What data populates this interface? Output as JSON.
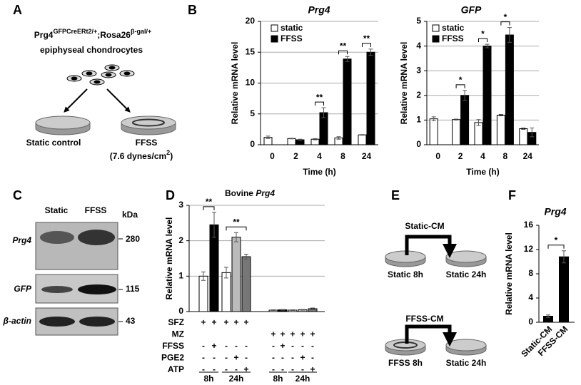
{
  "panel_labels": [
    "A",
    "B",
    "C",
    "D",
    "E",
    "F"
  ],
  "panel_a": {
    "title_parts": [
      "Prg4",
      "GFPCreERt2/+",
      ";Rosa26",
      "β-gal/+"
    ],
    "subtitle": "epiphyseal chondrocytes",
    "left_label": "Static control",
    "right_label": "FFSS",
    "right_sublabel_parts": [
      "(7.6 dynes/cm",
      "2",
      ")"
    ]
  },
  "chart_data": [
    {
      "type": "bar",
      "title": "Prg4",
      "categories": [
        "0",
        "2",
        "4",
        "8",
        "24"
      ],
      "series": [
        {
          "name": "static",
          "color": "#ffffff",
          "values": [
            1.2,
            1.0,
            0.9,
            1.1,
            1.6
          ],
          "errors": [
            0.2,
            0.05,
            0.1,
            0.2,
            0.05
          ]
        },
        {
          "name": "FFSS",
          "color": "#000000",
          "values": [
            null,
            0.8,
            5.2,
            13.9,
            15.0
          ],
          "errors": [
            null,
            0.1,
            0.8,
            0.4,
            0.5
          ]
        }
      ],
      "significance": [
        null,
        null,
        "**",
        "**",
        "**"
      ],
      "xlabel": "Time (h)",
      "ylabel": "Relative mRNA level",
      "ylim": [
        0,
        20
      ],
      "yticks": [
        0,
        5,
        10,
        15,
        20
      ],
      "grid": true,
      "legend": "top-left"
    },
    {
      "type": "bar",
      "title": "GFP",
      "categories": [
        "0",
        "2",
        "4",
        "8",
        "24"
      ],
      "series": [
        {
          "name": "static",
          "color": "#ffffff",
          "values": [
            1.05,
            1.02,
            0.9,
            1.2,
            0.65
          ],
          "errors": [
            0.08,
            0.02,
            0.12,
            0.03,
            0.03
          ]
        },
        {
          "name": "FFSS",
          "color": "#000000",
          "values": [
            null,
            2.0,
            4.0,
            4.45,
            0.5
          ],
          "errors": [
            null,
            0.2,
            0.07,
            0.3,
            0.18
          ]
        }
      ],
      "significance": [
        null,
        "*",
        "*",
        "*",
        null
      ],
      "xlabel": "Time (h)",
      "ylabel": "Relative mRNA level",
      "ylim": [
        0,
        5
      ],
      "yticks": [
        0,
        1,
        2,
        3,
        4,
        5
      ],
      "grid": true,
      "legend": "top-left"
    },
    {
      "type": "bar",
      "title": [
        "Bovine",
        "Prg4"
      ],
      "categories": [
        null,
        null,
        null,
        null,
        null,
        null,
        null,
        null,
        null,
        null
      ],
      "series": [
        {
          "colors": [
            "#ffffff",
            "#000000",
            "#ffffff",
            "#bbbbbb",
            "#777777",
            "#ffffff",
            "#000000",
            "#ffffff",
            "#bbbbbb",
            "#777777"
          ],
          "values": [
            1.0,
            2.45,
            1.1,
            2.1,
            1.55,
            0.04,
            0.05,
            0.04,
            0.05,
            0.08
          ],
          "errors": [
            0.12,
            0.35,
            0.15,
            0.13,
            0.07,
            0.01,
            0.01,
            0.01,
            0.01,
            0.02
          ]
        }
      ],
      "significance": [
        "**",
        null,
        "**",
        null,
        null,
        null,
        null,
        null,
        null,
        null
      ],
      "ylabel": "Relative mRNA level",
      "ylim": [
        0,
        3
      ],
      "yticks": [
        0,
        1,
        2,
        3
      ],
      "grid": true,
      "treatments": [
        {
          "name": "SFZ",
          "marks": [
            "+",
            "+",
            "+",
            "+",
            "+",
            null,
            null,
            null,
            null,
            null
          ]
        },
        {
          "name": "MZ",
          "marks": [
            null,
            null,
            null,
            null,
            null,
            "+",
            "+",
            "+",
            "+",
            "+"
          ]
        },
        {
          "name": "FFSS",
          "marks": [
            "-",
            "+",
            "-",
            "-",
            "-",
            "-",
            "+",
            "-",
            "-",
            "-"
          ]
        },
        {
          "name": "PGE2",
          "marks": [
            "-",
            "-",
            "-",
            "+",
            "-",
            "-",
            "-",
            "-",
            "+",
            "-"
          ]
        },
        {
          "name": "ATP",
          "marks": [
            "-",
            "-",
            "-",
            "-",
            "+",
            "-",
            "-",
            "-",
            "-",
            "+"
          ]
        }
      ],
      "time_groups": [
        "8h",
        "24h",
        "8h",
        "24h"
      ]
    },
    {
      "type": "bar",
      "title": "Prg4",
      "categories": [
        "Static-CM",
        "FFSS-CM"
      ],
      "series": [
        {
          "color": "#000000",
          "values": [
            1.0,
            10.8
          ],
          "errors": [
            0.2,
            1.0
          ]
        }
      ],
      "significance": [
        "*",
        null
      ],
      "ylabel": "Relative mRNA level",
      "ylim": [
        0,
        16
      ],
      "yticks": [
        0,
        4,
        8,
        12,
        16
      ],
      "grid": false
    }
  ],
  "panel_c": {
    "columns": [
      "Static",
      "FFSS"
    ],
    "unit": "kDa",
    "rows": [
      {
        "label": "Prg4",
        "size": 280
      },
      {
        "label": "GFP",
        "size": 115
      },
      {
        "label": "β-actin",
        "size": 43
      }
    ]
  },
  "panel_e": {
    "top_title": "Static-CM",
    "top_source": "Static 8h",
    "top_target": "Static 24h",
    "bottom_title": "FFSS-CM",
    "bottom_source": "FFSS 8h",
    "bottom_target": "Static 24h"
  }
}
